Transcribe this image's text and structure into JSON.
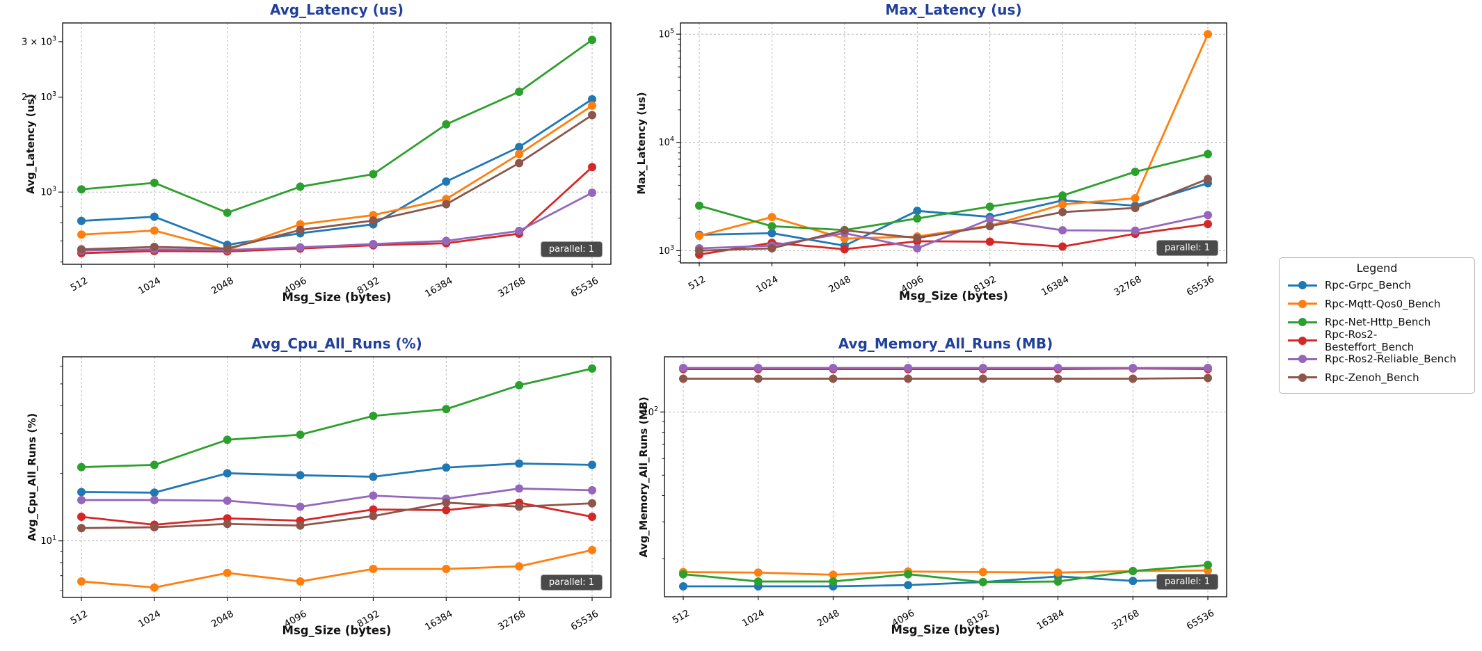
{
  "figure": {
    "background": "#ffffff",
    "title_color": "#21409a",
    "badge_text": "parallel: 1",
    "badge_bg": "#4a4a4a",
    "grid_color": "#b0b0b0",
    "spine_color": "#000000"
  },
  "legend": {
    "title": "Legend",
    "items": [
      {
        "label": "Rpc-Grpc_Bench",
        "color": "#1f77b4"
      },
      {
        "label": "Rpc-Mqtt-Qos0_Bench",
        "color": "#ff7f0e"
      },
      {
        "label": "Rpc-Net-Http_Bench",
        "color": "#2ca02c"
      },
      {
        "label": "Rpc-Ros2-Besteffort_Bench",
        "color": "#d62728"
      },
      {
        "label": "Rpc-Ros2-Reliable_Bench",
        "color": "#9467bd"
      },
      {
        "label": "Rpc-Zenoh_Bench",
        "color": "#8c564b"
      }
    ]
  },
  "chart_data": [
    {
      "type": "line",
      "name": "avg-latency",
      "title": "Avg_Latency (us)",
      "ylabel": "Avg_Latency (us)",
      "xlabel": "Msg_Size (bytes)",
      "x_scale": "log2",
      "y_scale": "log10",
      "grid": "dashed",
      "badge": "parallel: 1",
      "ylim": [
        590,
        3440
      ],
      "yticks": [
        {
          "value": 1000,
          "prefix": "",
          "exp": "3",
          "grid": true
        },
        {
          "value": 2000,
          "prefix": "2 × ",
          "exp": "3",
          "grid": false
        },
        {
          "value": 3000,
          "prefix": "3 × ",
          "exp": "3",
          "grid": false
        }
      ],
      "categories": [
        "512",
        "1024",
        "2048",
        "4096",
        "8192",
        "16384",
        "32768",
        "65536"
      ],
      "series": [
        {
          "name": "Rpc-Grpc_Bench",
          "color": "#1f77b4",
          "values": [
            810,
            835,
            680,
            740,
            790,
            1080,
            1390,
            1970
          ]
        },
        {
          "name": "Rpc-Mqtt-Qos0_Bench",
          "color": "#ff7f0e",
          "values": [
            733,
            755,
            655,
            790,
            845,
            950,
            1320,
            1880
          ]
        },
        {
          "name": "Rpc-Net-Http_Bench",
          "color": "#2ca02c",
          "values": [
            1020,
            1070,
            860,
            1040,
            1140,
            1640,
            2080,
            3040
          ]
        },
        {
          "name": "Rpc-Ros2-Besteffort_Bench",
          "color": "#d62728",
          "values": [
            640,
            650,
            648,
            662,
            678,
            688,
            738,
            1200
          ]
        },
        {
          "name": "Rpc-Ros2-Reliable_Bench",
          "color": "#9467bd",
          "values": [
            652,
            658,
            655,
            668,
            684,
            700,
            753,
            995
          ]
        },
        {
          "name": "Rpc-Zenoh_Bench",
          "color": "#8c564b",
          "values": [
            658,
            670,
            662,
            758,
            812,
            915,
            1236,
            1755
          ]
        }
      ]
    },
    {
      "type": "line",
      "name": "max-latency",
      "title": "Max_Latency (us)",
      "ylabel": "Max_Latency (us)",
      "xlabel": "Msg_Size (bytes)",
      "x_scale": "log2",
      "y_scale": "log10",
      "grid": "dashed",
      "badge": "parallel: 1",
      "ylim": [
        770,
        127000
      ],
      "yticks": [
        {
          "value": 1000,
          "prefix": "",
          "exp": "3",
          "grid": true
        },
        {
          "value": 10000,
          "prefix": "",
          "exp": "4",
          "grid": true
        },
        {
          "value": 100000,
          "prefix": "",
          "exp": "5",
          "grid": true
        }
      ],
      "categories": [
        "512",
        "1024",
        "2048",
        "4096",
        "8192",
        "16384",
        "32768",
        "65536"
      ],
      "series": [
        {
          "name": "Rpc-Grpc_Bench",
          "color": "#1f77b4",
          "values": [
            1400,
            1450,
            1110,
            2330,
            2050,
            2910,
            2600,
            4200
          ]
        },
        {
          "name": "Rpc-Mqtt-Qos0_Bench",
          "color": "#ff7f0e",
          "values": [
            1370,
            2040,
            1290,
            1350,
            1700,
            2670,
            3050,
            100000
          ]
        },
        {
          "name": "Rpc-Net-Http_Bench",
          "color": "#2ca02c",
          "values": [
            2600,
            1680,
            1550,
            1980,
            2550,
            3230,
            5350,
            7800
          ]
        },
        {
          "name": "Rpc-Ros2-Besteffort_Bench",
          "color": "#d62728",
          "values": [
            920,
            1180,
            1030,
            1220,
            1210,
            1090,
            1430,
            1760
          ]
        },
        {
          "name": "Rpc-Ros2-Reliable_Bench",
          "color": "#9467bd",
          "values": [
            1050,
            1110,
            1450,
            1050,
            1950,
            1540,
            1530,
            2130
          ]
        },
        {
          "name": "Rpc-Zenoh_Bench",
          "color": "#8c564b",
          "values": [
            1000,
            1050,
            1540,
            1310,
            1680,
            2270,
            2480,
            4600
          ]
        }
      ]
    },
    {
      "type": "line",
      "name": "avg-cpu",
      "title": "Avg_Cpu_All_Runs (%)",
      "ylabel": "Avg_Cpu_All_Runs (%)",
      "xlabel": "Msg_Size (bytes)",
      "x_scale": "log2",
      "y_scale": "log10",
      "grid": "dashed",
      "badge": "parallel: 1",
      "ylim": [
        5.6,
        66
      ],
      "yticks": [
        {
          "value": 10,
          "prefix": "",
          "exp": "1",
          "grid": true
        }
      ],
      "categories": [
        "512",
        "1024",
        "2048",
        "4096",
        "8192",
        "16384",
        "32768",
        "65536"
      ],
      "series": [
        {
          "name": "Rpc-Grpc_Bench",
          "color": "#1f77b4",
          "values": [
            16.5,
            16.4,
            20.0,
            19.6,
            19.3,
            21.2,
            22.1,
            21.8
          ]
        },
        {
          "name": "Rpc-Mqtt-Qos0_Bench",
          "color": "#ff7f0e",
          "values": [
            6.6,
            6.2,
            7.2,
            6.6,
            7.5,
            7.5,
            7.7,
            9.1
          ]
        },
        {
          "name": "Rpc-Net-Http_Bench",
          "color": "#2ca02c",
          "values": [
            21.3,
            21.8,
            28.2,
            29.7,
            36.0,
            38.6,
            49.3,
            58.5
          ]
        },
        {
          "name": "Rpc-Ros2-Besteffort_Bench",
          "color": "#d62728",
          "values": [
            12.8,
            11.8,
            12.6,
            12.3,
            13.8,
            13.7,
            14.8,
            12.8
          ]
        },
        {
          "name": "Rpc-Ros2-Reliable_Bench",
          "color": "#9467bd",
          "values": [
            15.2,
            15.2,
            15.1,
            14.2,
            15.9,
            15.4,
            17.1,
            16.8
          ]
        },
        {
          "name": "Rpc-Zenoh_Bench",
          "color": "#8c564b",
          "values": [
            11.4,
            11.5,
            11.9,
            11.7,
            12.9,
            14.8,
            14.2,
            14.7
          ]
        }
      ]
    },
    {
      "type": "line",
      "name": "avg-memory",
      "title": "Avg_Memory_All_Runs (MB)",
      "ylabel": "Avg_Memory_All_Runs (MB)",
      "xlabel": "Msg_Size (bytes)",
      "x_scale": "log2",
      "y_scale": "log10",
      "grid": "dashed",
      "badge": "parallel: 1",
      "ylim": [
        13.2,
        183
      ],
      "yticks": [
        {
          "value": 100,
          "prefix": "",
          "exp": "2",
          "grid": true
        }
      ],
      "categories": [
        "512",
        "1024",
        "2048",
        "4096",
        "8192",
        "16384",
        "32768",
        "65536"
      ],
      "series": [
        {
          "name": "Rpc-Grpc_Bench",
          "color": "#1f77b4",
          "values": [
            14.8,
            14.8,
            14.8,
            15.0,
            15.5,
            16.5,
            15.7,
            16.0
          ]
        },
        {
          "name": "Rpc-Mqtt-Qos0_Bench",
          "color": "#ff7f0e",
          "values": [
            17.3,
            17.2,
            16.8,
            17.4,
            17.3,
            17.2,
            17.5,
            17.6
          ]
        },
        {
          "name": "Rpc-Net-Http_Bench",
          "color": "#2ca02c",
          "values": [
            16.9,
            15.6,
            15.6,
            16.9,
            15.5,
            15.6,
            17.5,
            18.7
          ]
        },
        {
          "name": "Rpc-Ros2-Besteffort_Bench",
          "color": "#d62728",
          "values": [
            160,
            160,
            160,
            160,
            160,
            160,
            161,
            160
          ]
        },
        {
          "name": "Rpc-Ros2-Reliable_Bench",
          "color": "#9467bd",
          "values": [
            162,
            162,
            162,
            162,
            162,
            162,
            162,
            162
          ]
        },
        {
          "name": "Rpc-Zenoh_Bench",
          "color": "#8c564b",
          "values": [
            144,
            144,
            144,
            144,
            144,
            144,
            144,
            145
          ]
        }
      ]
    }
  ]
}
